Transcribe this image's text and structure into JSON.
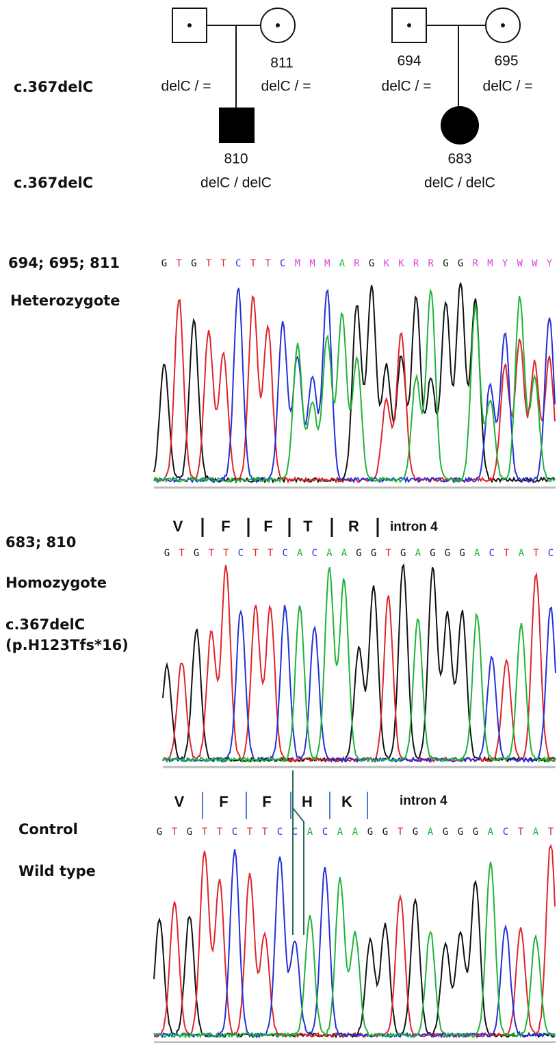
{
  "pedigree": {
    "row_labels": [
      "c.367delC",
      "c.367delC"
    ],
    "families": [
      {
        "father": {
          "genotype": "delC / ="
        },
        "mother": {
          "id": "811",
          "genotype": "delC / ="
        },
        "child": {
          "id": "810",
          "genotype": "delC / delC"
        }
      },
      {
        "father": {
          "id": "694",
          "genotype": "delC / ="
        },
        "mother": {
          "id": "695",
          "genotype": "delC / ="
        },
        "child": {
          "id": "683",
          "genotype": "delC / delC"
        }
      }
    ]
  },
  "chromatograms": [
    {
      "samples": "694; 695; 811",
      "zygosity": "Heterozygote",
      "sequence": [
        "G",
        "T",
        "G",
        "T",
        "T",
        "C",
        "T",
        "T",
        "C",
        "M",
        "M",
        "M",
        "A",
        "R",
        "G",
        "K",
        "K",
        "R",
        "R",
        "G",
        "G",
        "R",
        "M",
        "Y",
        "W",
        "W",
        "Y"
      ]
    },
    {
      "samples": "683; 810",
      "zygosity": "Homozygote",
      "mutation": "c.367delC",
      "protein": "(p.H123Tfs*16)",
      "amino_acids": [
        "V",
        "F",
        "F",
        "T",
        "R"
      ],
      "region": "intron 4",
      "sequence": [
        "G",
        "T",
        "G",
        "T",
        "T",
        "C",
        "T",
        "T",
        "C",
        "A",
        "C",
        "A",
        "A",
        "G",
        "G",
        "T",
        "G",
        "A",
        "G",
        "G",
        "G",
        "A",
        "C",
        "T",
        "A",
        "T",
        "C"
      ]
    },
    {
      "samples": "Control",
      "zygosity": "Wild type",
      "amino_acids": [
        "V",
        "F",
        "F",
        "H",
        "K"
      ],
      "region": "intron 4",
      "sequence": [
        "G",
        "T",
        "G",
        "T",
        "T",
        "C",
        "T",
        "T",
        "C",
        "C",
        "A",
        "C",
        "A",
        "A",
        "G",
        "G",
        "T",
        "G",
        "A",
        "G",
        "G",
        "G",
        "A",
        "C",
        "T",
        "A",
        "T"
      ]
    }
  ]
}
